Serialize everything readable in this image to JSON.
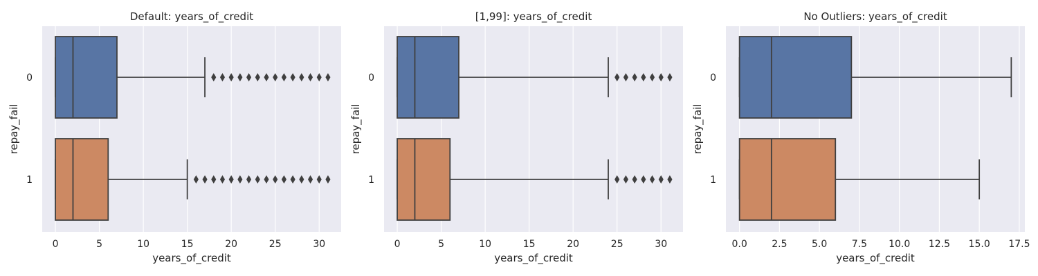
{
  "figure": {
    "colors": {
      "background": "#eaeaf2",
      "grid": "#ffffff",
      "line": "#3f3f3f",
      "group0": "#5875a4",
      "group1": "#cc8963"
    }
  },
  "chart_data": [
    {
      "type": "boxplot",
      "orientation": "horizontal",
      "title": "Default: years_of_credit",
      "xlabel": "years_of_credit",
      "ylabel": "repay_fail",
      "xlim": [
        -1.5,
        32.5
      ],
      "xticks": [
        0,
        5,
        10,
        15,
        20,
        25,
        30
      ],
      "xtick_labels": [
        "0",
        "5",
        "10",
        "15",
        "20",
        "25",
        "30"
      ],
      "categories": [
        "0",
        "1"
      ],
      "grid": true,
      "series": [
        {
          "category": "0",
          "min": 0,
          "q1": 0,
          "median": 2,
          "q3": 7,
          "max": 17,
          "outliers": [
            18,
            19,
            20,
            21,
            22,
            23,
            24,
            25,
            26,
            27,
            28,
            29,
            30,
            31
          ],
          "color": "#5875a4"
        },
        {
          "category": "1",
          "min": 0,
          "q1": 0,
          "median": 2,
          "q3": 6,
          "max": 15,
          "outliers": [
            16,
            17,
            18,
            19,
            20,
            21,
            22,
            23,
            24,
            25,
            26,
            27,
            28,
            29,
            30,
            31
          ],
          "color": "#cc8963"
        }
      ]
    },
    {
      "type": "boxplot",
      "orientation": "horizontal",
      "title": "[1,99]: years_of_credit",
      "xlabel": "years_of_credit",
      "ylabel": "repay_fail",
      "xlim": [
        -1.5,
        32.5
      ],
      "xticks": [
        0,
        5,
        10,
        15,
        20,
        25,
        30
      ],
      "xtick_labels": [
        "0",
        "5",
        "10",
        "15",
        "20",
        "25",
        "30"
      ],
      "categories": [
        "0",
        "1"
      ],
      "grid": true,
      "series": [
        {
          "category": "0",
          "min": 0,
          "q1": 0,
          "median": 2,
          "q3": 7,
          "max": 24,
          "outliers": [
            25,
            26,
            27,
            28,
            29,
            30,
            31
          ],
          "color": "#5875a4"
        },
        {
          "category": "1",
          "min": 0,
          "q1": 0,
          "median": 2,
          "q3": 6,
          "max": 24,
          "outliers": [
            25,
            26,
            27,
            28,
            29,
            30,
            31
          ],
          "color": "#cc8963"
        }
      ]
    },
    {
      "type": "boxplot",
      "orientation": "horizontal",
      "title": "No Outliers: years_of_credit",
      "xlabel": "years_of_credit",
      "ylabel": "repay_fail",
      "xlim": [
        -0.85,
        17.85
      ],
      "xticks": [
        0,
        2.5,
        5,
        7.5,
        10,
        12.5,
        15,
        17.5
      ],
      "xtick_labels": [
        "0.0",
        "2.5",
        "5.0",
        "7.5",
        "10.0",
        "12.5",
        "15.0",
        "17.5"
      ],
      "categories": [
        "0",
        "1"
      ],
      "grid": true,
      "series": [
        {
          "category": "0",
          "min": 0,
          "q1": 0,
          "median": 2,
          "q3": 7,
          "max": 17,
          "outliers": [],
          "color": "#5875a4"
        },
        {
          "category": "1",
          "min": 0,
          "q1": 0,
          "median": 2,
          "q3": 6,
          "max": 15,
          "outliers": [],
          "color": "#cc8963"
        }
      ]
    }
  ]
}
